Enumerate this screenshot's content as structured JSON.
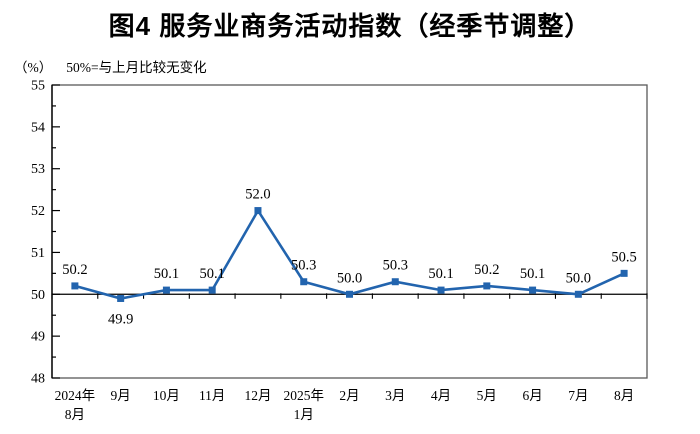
{
  "page": {
    "background": "#ffffff"
  },
  "header": {
    "title": "图4 服务业商务活动指数（经季节调整）",
    "subtitle_unit": "（%）",
    "subtitle_note": "50%=与上月比较无变化"
  },
  "chart_data": {
    "type": "line",
    "title": "图4 服务业商务活动指数（经季节调整）",
    "subtitle": "（%）50%=与上月比较无变化",
    "series_name": "服务业商务活动指数",
    "categories": [
      "2024年\n8月",
      "9月",
      "10月",
      "11月",
      "12月",
      "2025年\n1月",
      "2月",
      "3月",
      "4月",
      "5月",
      "6月",
      "7月",
      "8月"
    ],
    "values": [
      50.2,
      49.9,
      50.1,
      50.1,
      52.0,
      50.3,
      50.0,
      50.3,
      50.1,
      50.2,
      50.1,
      50.0,
      50.5
    ],
    "data_labels": [
      "50.2",
      "49.9",
      "50.1",
      "50.1",
      "52.0",
      "50.3",
      "50.0",
      "50.3",
      "50.1",
      "50.2",
      "50.1",
      "50.0",
      "50.5"
    ],
    "label_positions": [
      "above",
      "below",
      "above",
      "above",
      "above",
      "above",
      "above",
      "above",
      "above",
      "above",
      "above",
      "above",
      "above"
    ],
    "ylim": [
      48,
      55
    ],
    "y_ticks": [
      48,
      49,
      50,
      51,
      52,
      53,
      54,
      55
    ],
    "y_minor_step": 0.5,
    "baseline_value": 50,
    "grid": false,
    "legend": "none",
    "line_color": "#2264AE",
    "marker": "square",
    "axis_color": "#000000",
    "frame_color": "#595959",
    "text_color": "#000000"
  }
}
